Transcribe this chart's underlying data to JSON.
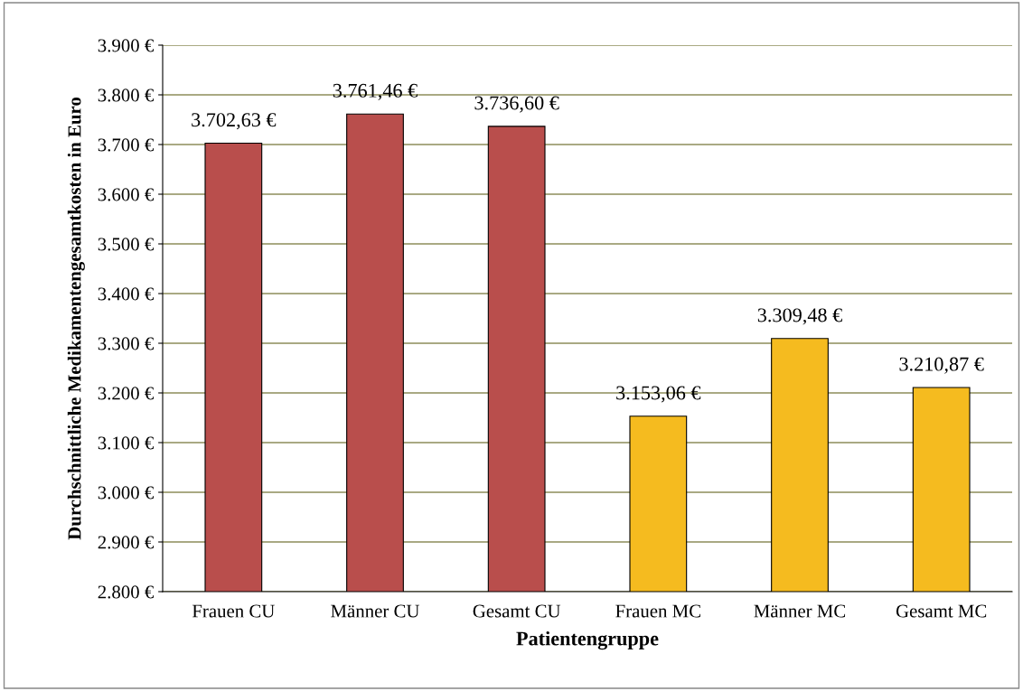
{
  "chart_data": {
    "type": "bar",
    "xlabel": "Patientengruppe",
    "ylabel": "Durchschnittliche Medikamentengesamtkosten in Euro",
    "categories": [
      "Frauen CU",
      "Männer CU",
      "Gesamt CU",
      "Frauen MC",
      "Männer MC",
      "Gesamt MC"
    ],
    "values": [
      3702.63,
      3761.46,
      3736.6,
      3153.06,
      3309.48,
      3210.87
    ],
    "colors": [
      "#b94e4c",
      "#b94e4c",
      "#b94e4c",
      "#f5bb1f",
      "#f5bb1f",
      "#f5bb1f"
    ],
    "value_labels": [
      "3.702,63 €",
      "3.761,46 €",
      "3.736,60 €",
      "3.153,06 €",
      "3.309,48 €",
      "3.210,87 €"
    ],
    "ylim": [
      2800,
      3900
    ],
    "yticks": [
      {
        "value": 2800,
        "label": "2.800 €"
      },
      {
        "value": 2900,
        "label": "2.900 €"
      },
      {
        "value": 3000,
        "label": "3.000 €"
      },
      {
        "value": 3100,
        "label": "3.100 €"
      },
      {
        "value": 3200,
        "label": "3.200 €"
      },
      {
        "value": 3300,
        "label": "3.300 €"
      },
      {
        "value": 3400,
        "label": "3.400 €"
      },
      {
        "value": 3500,
        "label": "3.500 €"
      },
      {
        "value": 3600,
        "label": "3.600 €"
      },
      {
        "value": 3700,
        "label": "3.700 €"
      },
      {
        "value": 3800,
        "label": "3.800 €"
      },
      {
        "value": 3900,
        "label": "3.900 €"
      }
    ],
    "grid": "y",
    "legend": false
  }
}
